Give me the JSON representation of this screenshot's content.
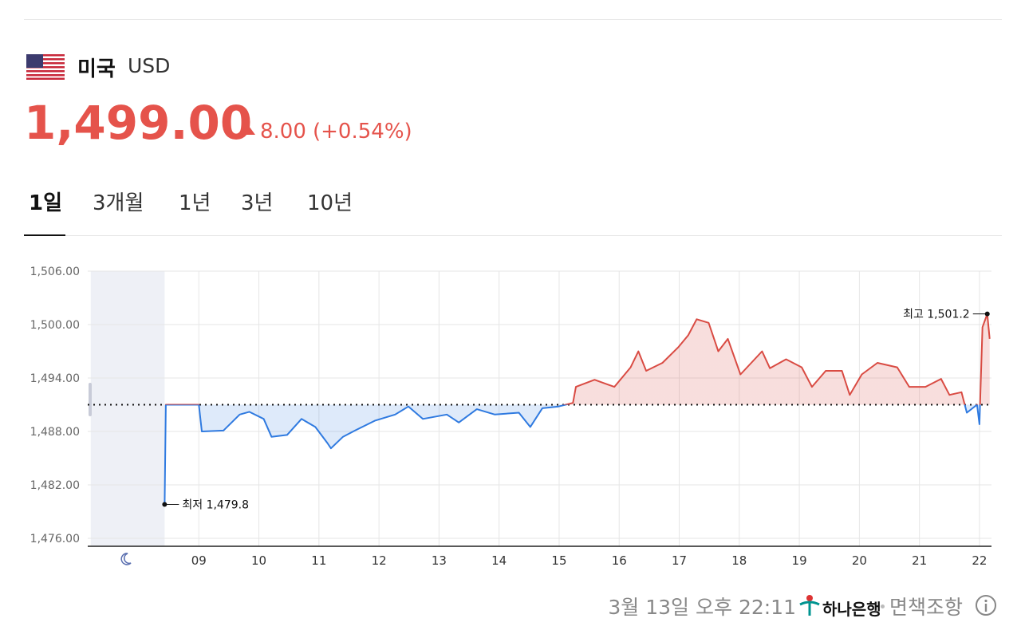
{
  "header": {
    "country": "미국",
    "currency": "USD",
    "price": "1,499.00",
    "change": "8.00",
    "change_pct": "(+0.54%)"
  },
  "tabs": [
    "1일",
    "3개월",
    "1년",
    "3년",
    "10년"
  ],
  "chart_data": {
    "type": "line",
    "x": [
      8.43,
      8.45,
      9.0,
      9.05,
      9.41,
      9.68,
      9.84,
      10.08,
      10.21,
      10.47,
      10.71,
      10.94,
      11.14,
      11.2,
      11.4,
      11.6,
      11.93,
      12.27,
      12.49,
      12.73,
      13.13,
      13.33,
      13.63,
      13.93,
      14.33,
      14.52,
      14.72,
      14.99,
      15.23,
      15.28,
      15.59,
      15.92,
      16.19,
      16.32,
      16.45,
      16.72,
      16.99,
      17.15,
      17.29,
      17.49,
      17.65,
      17.81,
      18.02,
      18.38,
      18.51,
      18.78,
      19.04,
      19.21,
      19.44,
      19.71,
      19.84,
      20.04,
      20.3,
      20.63,
      20.83,
      21.1,
      21.36,
      21.5,
      21.7,
      21.79,
      21.96,
      22.0,
      22.05,
      22.13,
      22.17
    ],
    "values": [
      1479.8,
      1491.0,
      1491.0,
      1488.0,
      1488.1,
      1489.9,
      1490.2,
      1489.4,
      1487.4,
      1487.6,
      1489.4,
      1488.5,
      1486.7,
      1486.1,
      1487.4,
      1488.1,
      1489.2,
      1489.9,
      1490.8,
      1489.4,
      1489.9,
      1489.0,
      1490.5,
      1489.9,
      1490.1,
      1488.5,
      1490.6,
      1490.8,
      1491.2,
      1493.0,
      1493.8,
      1493.0,
      1495.2,
      1497.0,
      1494.8,
      1495.7,
      1497.5,
      1498.8,
      1500.6,
      1500.2,
      1497.0,
      1498.4,
      1494.4,
      1497.0,
      1495.1,
      1496.1,
      1495.2,
      1493.0,
      1494.8,
      1494.8,
      1492.1,
      1494.4,
      1495.7,
      1495.2,
      1493.0,
      1493.0,
      1493.9,
      1492.1,
      1492.4,
      1490.1,
      1491.0,
      1488.8,
      1499.7,
      1501.2,
      1498.4
    ],
    "baseline": 1491.0,
    "up_color": "#d94b43",
    "down_color": "#2f7ae0",
    "xlim": [
      7.15,
      22.2
    ],
    "ylim": [
      1475.1,
      1506
    ],
    "xticks": [
      {
        "value": 9,
        "label": "09"
      },
      10,
      11,
      12,
      13,
      14,
      15,
      16,
      17,
      18,
      19,
      20,
      21,
      22
    ],
    "yticks": [
      {
        "value": 1476,
        "label": "1,476.00"
      },
      {
        "value": 1482,
        "label": "1,482.00"
      },
      {
        "value": 1488,
        "label": "1,488.00"
      },
      {
        "value": 1494,
        "label": "1,494.00"
      },
      {
        "value": 1500,
        "label": "1,500.00"
      },
      {
        "value": 1506,
        "label": "1,506.00"
      }
    ],
    "shade_x": [
      7.2,
      8.43
    ],
    "annotations": [
      {
        "text": "최저 1,479.8",
        "x": 8.43,
        "y": 1479.8
      },
      {
        "text": "최고 1,501.2",
        "x": 22.13,
        "y": 1501.2
      }
    ],
    "grid": true
  },
  "footer": {
    "timestamp": "3월 13일 오후 22:11",
    "bank": "하나은행",
    "disclaimer": "면책조항"
  }
}
